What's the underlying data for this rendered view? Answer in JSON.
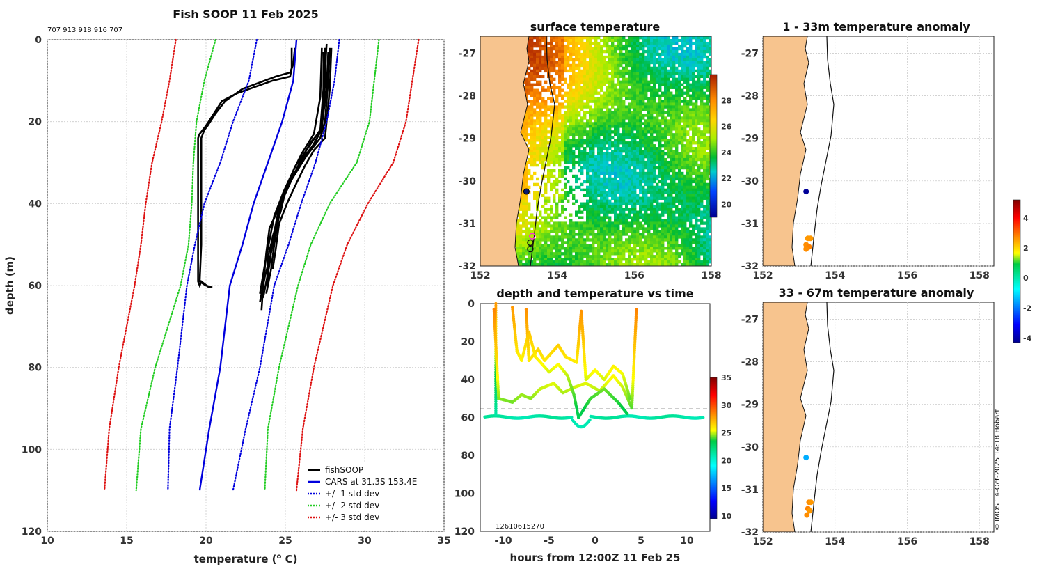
{
  "colors": {
    "land": "#f7c48e",
    "axis": "#222222",
    "grid": "#cccccc",
    "obs": "#000000",
    "cars": "#0000dd",
    "std1": "#0000dd",
    "std2": "#22cc22",
    "std3": "#dd1111"
  },
  "profile_panel": {
    "title": "Fish SOOP 11 Feb 2025",
    "ids_text": "707 913 918 916 707",
    "chart_data": {
      "type": "line",
      "title": "Fish SOOP 11 Feb 2025",
      "xlabel": "temperature (",
      "xlabel_sup": "o",
      "xlabel_end": " C)",
      "ylabel": "depth (m)",
      "xlim": [
        10,
        35
      ],
      "ylim": [
        0,
        120
      ],
      "y_reversed": true,
      "xticks": [
        10,
        15,
        20,
        25,
        30,
        35
      ],
      "yticks": [
        0,
        20,
        40,
        60,
        80,
        100,
        120
      ],
      "grid": true,
      "series": [
        {
          "name": "fishSOOP",
          "color": "#000000",
          "style": "solid",
          "profiles": [
            {
              "t": [
                25.4,
                25.4,
                25.3,
                24.2,
                22.0,
                21.0,
                20.5,
                20.0,
                19.8,
                19.6,
                19.5,
                19.5,
                19.5,
                19.5,
                19.5,
                19.6,
                19.7,
                20.2
              ],
              "d": [
                2,
                7,
                9,
                10,
                13,
                15,
                18,
                21,
                22,
                23,
                24,
                30,
                40,
                50,
                59,
                60,
                59,
                60.5
              ]
            },
            {
              "t": [
                25.6,
                25.5,
                25.3,
                24.4,
                22.3,
                21.2,
                20.6,
                20.1,
                19.9,
                19.7,
                19.7,
                19.7,
                19.7,
                19.6,
                19.8,
                20.0,
                20.4
              ],
              "d": [
                2,
                6,
                8,
                9,
                12,
                15,
                18,
                21,
                22,
                24,
                30,
                40,
                50,
                59,
                59.5,
                60,
                60.5
              ]
            },
            {
              "t": [
                27.6,
                27.5,
                27.4,
                27.3,
                26.7,
                25.9,
                25.1,
                24.6,
                24.0,
                23.8,
                23.6,
                23.5
              ],
              "d": [
                1,
                8,
                15,
                22,
                26,
                31,
                36,
                41,
                46,
                52,
                60,
                66
              ]
            },
            {
              "t": [
                27.8,
                27.7,
                27.5,
                27.2,
                26.4,
                25.5,
                24.9,
                24.6,
                24.3,
                24.1,
                23.8
              ],
              "d": [
                2,
                10,
                20,
                24,
                28,
                33,
                38,
                43,
                50,
                56,
                62
              ]
            },
            {
              "t": [
                27.4,
                27.4,
                27.2,
                26.5,
                25.6,
                25.0,
                24.7,
                24.2,
                24.0,
                23.6
              ],
              "d": [
                3,
                12,
                22,
                26,
                31,
                37,
                42,
                48,
                55,
                63
              ]
            },
            {
              "t": [
                27.7,
                27.6,
                27.3,
                26.9,
                26.1,
                25.4,
                24.8,
                24.5,
                24.1,
                23.7,
                23.4
              ],
              "d": [
                3,
                12,
                21,
                25,
                29,
                34,
                39,
                45,
                52,
                58,
                64
              ]
            },
            {
              "t": [
                27.5,
                27.5,
                27.3,
                26.6,
                25.9,
                25.3,
                24.6,
                24.3,
                23.9,
                23.9
              ],
              "d": [
                2,
                11,
                22,
                25,
                30,
                35,
                41,
                47,
                53,
                60
              ]
            },
            {
              "t": [
                27.9,
                27.8,
                27.5,
                26.8,
                26.2,
                25.7,
                25.1,
                24.6,
                24.4,
                24.2
              ],
              "d": [
                2,
                12,
                24,
                27,
                31,
                35,
                40,
                45,
                51,
                56
              ]
            },
            {
              "t": [
                27.3,
                27.2,
                26.8,
                26.0,
                25.5,
                24.9,
                24.3,
                24.0,
                23.7,
                23.4
              ],
              "d": [
                2,
                14,
                23,
                28,
                32,
                37,
                43,
                49,
                55,
                62
              ]
            }
          ]
        },
        {
          "name": "CARS at 31.3S 153.4E",
          "color": "#0000dd",
          "style": "solid",
          "t": [
            25.7,
            25.5,
            24.8,
            23.9,
            23.0,
            22.3,
            21.5,
            20.9,
            20.2,
            19.6
          ],
          "d": [
            0,
            10,
            20,
            30,
            40,
            50,
            60,
            80,
            95,
            110
          ]
        },
        {
          "name": "+/- 1 std dev",
          "color": "#0000dd",
          "style": "dotted",
          "pair": true,
          "lower": {
            "t": [
              23.2,
              22.7,
              21.7,
              20.9,
              19.9,
              19.3,
              18.8,
              18.2,
              17.7,
              17.6
            ],
            "d": [
              0,
              10,
              20,
              30,
              40,
              50,
              60,
              80,
              95,
              110
            ]
          },
          "upper": {
            "t": [
              28.4,
              28.1,
              27.6,
              26.9,
              26.0,
              25.2,
              24.3,
              23.4,
              22.5,
              21.7
            ],
            "d": [
              0,
              10,
              20,
              30,
              40,
              50,
              60,
              80,
              95,
              110
            ]
          }
        },
        {
          "name": "+/- 2 std dev",
          "color": "#22cc22",
          "style": "dotted",
          "pair": true,
          "lower": {
            "t": [
              20.6,
              19.9,
              19.4,
              19.2,
              19.1,
              18.9,
              18.4,
              16.8,
              15.9,
              15.6
            ],
            "d": [
              0,
              10,
              20,
              30,
              40,
              50,
              60,
              80,
              95,
              110
            ]
          },
          "upper": {
            "t": [
              30.9,
              30.6,
              30.3,
              29.5,
              27.8,
              26.6,
              25.8,
              24.6,
              23.9,
              23.7
            ],
            "d": [
              0,
              10,
              20,
              30,
              40,
              50,
              60,
              80,
              95,
              110
            ]
          }
        },
        {
          "name": "+/- 3 std dev",
          "color": "#dd1111",
          "style": "dotted",
          "pair": true,
          "lower": {
            "t": [
              18.1,
              17.7,
              17.2,
              16.6,
              16.2,
              15.9,
              15.5,
              14.5,
              13.9,
              13.6
            ],
            "d": [
              0,
              10,
              20,
              30,
              40,
              50,
              60,
              80,
              95,
              110
            ]
          },
          "upper": {
            "t": [
              33.4,
              33.0,
              32.6,
              31.8,
              30.2,
              28.9,
              28.0,
              26.8,
              26.1,
              25.7
            ],
            "d": [
              0,
              10,
              20,
              30,
              40,
              50,
              60,
              80,
              95,
              110
            ]
          }
        }
      ],
      "legend_position": "bottom-right"
    }
  },
  "sst_panel": {
    "chart_data": {
      "type": "heatmap",
      "title": "surface temperature",
      "xlim": [
        152,
        158
      ],
      "ylim": [
        -32,
        -26.6
      ],
      "xticks": [
        152,
        154,
        156,
        158
      ],
      "yticks": [
        -27,
        -28,
        -29,
        -30,
        -31,
        -32
      ],
      "colorbar": {
        "range": [
          19,
          30
        ],
        "ticks": [
          20,
          22,
          24,
          26,
          28
        ]
      },
      "markers": [
        {
          "lon": 153.2,
          "lat": -30.25,
          "kind": "filled",
          "color": "#0a1a6e"
        },
        {
          "lon": 153.35,
          "lat": -31.3,
          "kind": "ring",
          "color": "#ff2ad4"
        },
        {
          "lon": 153.3,
          "lat": -31.45,
          "kind": "ring",
          "color": "#111111"
        },
        {
          "lon": 153.3,
          "lat": -31.6,
          "kind": "ring",
          "color": "#111111"
        }
      ]
    }
  },
  "time_panel": {
    "chart_data": {
      "type": "scatter",
      "title": "depth and temperature vs time",
      "xlabel": "hours from 12:00Z 11 Feb 25",
      "xlim": [
        -12.5,
        12.5
      ],
      "ylim": [
        0,
        120
      ],
      "y_reversed": true,
      "xticks": [
        -10,
        -5,
        0,
        5,
        10
      ],
      "yticks": [
        0,
        20,
        40,
        60,
        80,
        100,
        120
      ],
      "reference_depth": 55.5,
      "colorbar": {
        "range": [
          9.5,
          35
        ],
        "ticks": [
          10,
          15,
          20,
          25,
          30,
          35
        ]
      },
      "annotation": "12610615270"
    }
  },
  "anom_panels": [
    {
      "chart_data": {
        "type": "scatter",
        "title": "1 - 33m temperature anomaly",
        "xlim": [
          152,
          158.4
        ],
        "ylim": [
          -32,
          -26.6
        ],
        "xticks": [
          152,
          154,
          156,
          158
        ],
        "yticks": [
          -27,
          -28,
          -29,
          -30,
          -31,
          -32
        ],
        "points": [
          {
            "lon": 153.2,
            "lat": -30.25,
            "value": -4.2
          },
          {
            "lon": 153.25,
            "lat": -31.35,
            "value": 2.6
          },
          {
            "lon": 153.32,
            "lat": -31.35,
            "value": 2.6
          },
          {
            "lon": 153.2,
            "lat": -31.5,
            "value": 2.7
          },
          {
            "lon": 153.28,
            "lat": -31.55,
            "value": 2.8
          },
          {
            "lon": 153.2,
            "lat": -31.6,
            "value": 2.7
          }
        ]
      }
    },
    {
      "chart_data": {
        "type": "scatter",
        "title": "33 - 67m temperature anomaly",
        "xlim": [
          152,
          158.4
        ],
        "ylim": [
          -32,
          -26.6
        ],
        "xticks": [
          152,
          154,
          156,
          158
        ],
        "yticks": [
          -27,
          -28,
          -29,
          -30,
          -31,
          -32
        ],
        "points": [
          {
            "lon": 153.2,
            "lat": -30.25,
            "value": -1.5
          },
          {
            "lon": 153.28,
            "lat": -31.3,
            "value": 2.7
          },
          {
            "lon": 153.33,
            "lat": -31.3,
            "value": 2.6
          },
          {
            "lon": 153.25,
            "lat": -31.45,
            "value": 2.8
          },
          {
            "lon": 153.3,
            "lat": -31.5,
            "value": 2.6
          },
          {
            "lon": 153.22,
            "lat": -31.6,
            "value": 2.7
          }
        ]
      }
    }
  ],
  "anom_colorbar": {
    "range": [
      -4.3,
      5.2
    ],
    "ticks": [
      -4,
      -2,
      0,
      2,
      4
    ]
  },
  "credit": "© IMOS 14-Oct-2025 14:18 Hobart"
}
